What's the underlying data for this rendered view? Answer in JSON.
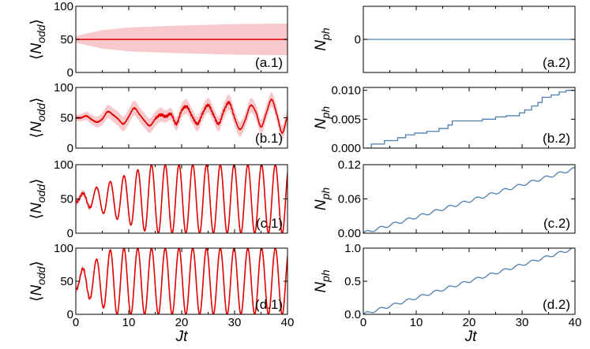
{
  "figure": {
    "xlabel_left": "Jt",
    "xlabel_right": "Jt"
  },
  "colors": {
    "red_line": "#e00000",
    "red_band": "#f7c9cc",
    "blue_line": "#4f7db0"
  },
  "chart_data": [
    {
      "id": "a1",
      "type": "area",
      "panel_label": "(a.1)",
      "ylabel": "⟨N_odd⟩",
      "xlim": [
        0,
        40
      ],
      "ylim": [
        0,
        100
      ],
      "yticks": [
        "0",
        "50",
        "100"
      ],
      "xticks": [
        "",
        "",
        "",
        "",
        ""
      ],
      "mean": {
        "x": [
          0,
          40
        ],
        "y": [
          50,
          50
        ]
      },
      "band": {
        "x": [
          0,
          5,
          10,
          20,
          30,
          40
        ],
        "upper": [
          55,
          64,
          68,
          71,
          73,
          74
        ],
        "lower": [
          45,
          36,
          32,
          29,
          27,
          26
        ]
      }
    },
    {
      "id": "a2",
      "type": "line",
      "panel_label": "(a.2)",
      "ylabel": "N_ph",
      "xlim": [
        0,
        40
      ],
      "ylim": [
        -1,
        1
      ],
      "yticks": [
        "0"
      ],
      "xticks": [
        "",
        "",
        "",
        "",
        ""
      ],
      "series": {
        "x": [
          0,
          40
        ],
        "y": [
          0,
          0
        ]
      }
    },
    {
      "id": "b1",
      "type": "line",
      "panel_label": "(b.1)",
      "ylabel": "⟨N_odd⟩",
      "xlim": [
        0,
        40
      ],
      "ylim": [
        0,
        100
      ],
      "yticks": [
        "0",
        "50",
        "100"
      ],
      "xticks": [
        "",
        "",
        "",
        "",
        ""
      ],
      "mean": {
        "x": [
          0,
          1,
          2,
          3,
          4,
          5,
          6,
          7,
          8,
          9,
          10,
          11,
          12,
          13,
          14,
          15,
          16,
          17,
          18,
          19,
          20,
          21,
          22,
          23,
          24,
          25,
          26,
          27,
          28,
          29,
          30,
          31,
          32,
          33,
          34,
          35,
          36,
          37,
          38,
          39,
          40
        ],
        "y": [
          50,
          50,
          53,
          47,
          43,
          48,
          60,
          55,
          48,
          40,
          52,
          66,
          56,
          45,
          37,
          48,
          55,
          52,
          56,
          40,
          62,
          68,
          52,
          40,
          58,
          71,
          55,
          40,
          62,
          75,
          50,
          31,
          46,
          70,
          60,
          35,
          58,
          80,
          55,
          25,
          52
        ]
      },
      "band_halfwidth": [
        5,
        6,
        7,
        8,
        9,
        10,
        11,
        11,
        12,
        12,
        12,
        12,
        12,
        12,
        12,
        12,
        12,
        10,
        10,
        11,
        12,
        12,
        12,
        12,
        12,
        12,
        12,
        12,
        13,
        13,
        13,
        12,
        12,
        12,
        12,
        12,
        12,
        12,
        12,
        12,
        12
      ]
    },
    {
      "id": "b2",
      "type": "line",
      "panel_label": "(b.2)",
      "ylabel": "N_ph",
      "xlim": [
        0,
        40
      ],
      "ylim": [
        0,
        0.0105
      ],
      "yticks": [
        "0.000",
        "0.005",
        "0.010"
      ],
      "xticks": [
        "",
        "",
        "",
        "",
        ""
      ],
      "series": {
        "step": true,
        "x": [
          0,
          1.5,
          4.0,
          6.5,
          8.0,
          9.7,
          12.0,
          14.3,
          16.0,
          16.8,
          22.5,
          25.0,
          27.0,
          29.5,
          30.5,
          31.8,
          33.0,
          33.8,
          35.5,
          37.0,
          38.3,
          40.0
        ],
        "y": [
          0,
          0.0007,
          0.0013,
          0.0018,
          0.0023,
          0.0026,
          0.0029,
          0.0034,
          0.004,
          0.0047,
          0.005,
          0.0054,
          0.0056,
          0.0061,
          0.0066,
          0.0073,
          0.0079,
          0.0088,
          0.0092,
          0.0097,
          0.01,
          0.01
        ]
      }
    },
    {
      "id": "c1",
      "type": "line",
      "panel_label": "(c.1)",
      "ylabel": "⟨N_odd⟩",
      "xlim": [
        0,
        40
      ],
      "ylim": [
        0,
        100
      ],
      "yticks": [
        "0",
        "50",
        "100"
      ],
      "xticks": [
        "",
        "",
        "",
        "",
        ""
      ],
      "model": {
        "kind": "sine",
        "center": 50,
        "amp_start": 4,
        "amp_end": 50,
        "ramp": 14,
        "period": 2.6
      }
    },
    {
      "id": "c2",
      "type": "line",
      "panel_label": "(c.2)",
      "ylabel": "N_ph",
      "xlim": [
        0,
        40
      ],
      "ylim": [
        0,
        0.12
      ],
      "yticks": [
        "0.00",
        "0.06",
        "0.12"
      ],
      "xticks": [
        "",
        "",
        "",
        "",
        ""
      ],
      "model": {
        "kind": "staircase",
        "end": 0.113,
        "wiggle": 0.0025,
        "period": 2.6
      }
    },
    {
      "id": "d1",
      "type": "line",
      "panel_label": "(d.1)",
      "ylabel": "⟨N_odd⟩",
      "xlim": [
        0,
        40
      ],
      "ylim": [
        0,
        100
      ],
      "yticks": [
        "0",
        "50",
        "100"
      ],
      "xticks": [
        "0",
        "10",
        "20",
        "30",
        "40"
      ],
      "model": {
        "kind": "sine",
        "center": 50,
        "amp_start": 12,
        "amp_end": 50,
        "ramp": 7,
        "period": 2.6
      }
    },
    {
      "id": "d2",
      "type": "line",
      "panel_label": "(d.2)",
      "ylabel": "N_ph",
      "xlim": [
        0,
        40
      ],
      "ylim": [
        0,
        1.0
      ],
      "yticks": [
        "0.0",
        "0.5",
        "1.0"
      ],
      "xticks": [
        "0",
        "10",
        "20",
        "30",
        "40"
      ],
      "model": {
        "kind": "staircase",
        "end": 1.0,
        "wiggle": 0.02,
        "period": 2.6
      }
    }
  ]
}
